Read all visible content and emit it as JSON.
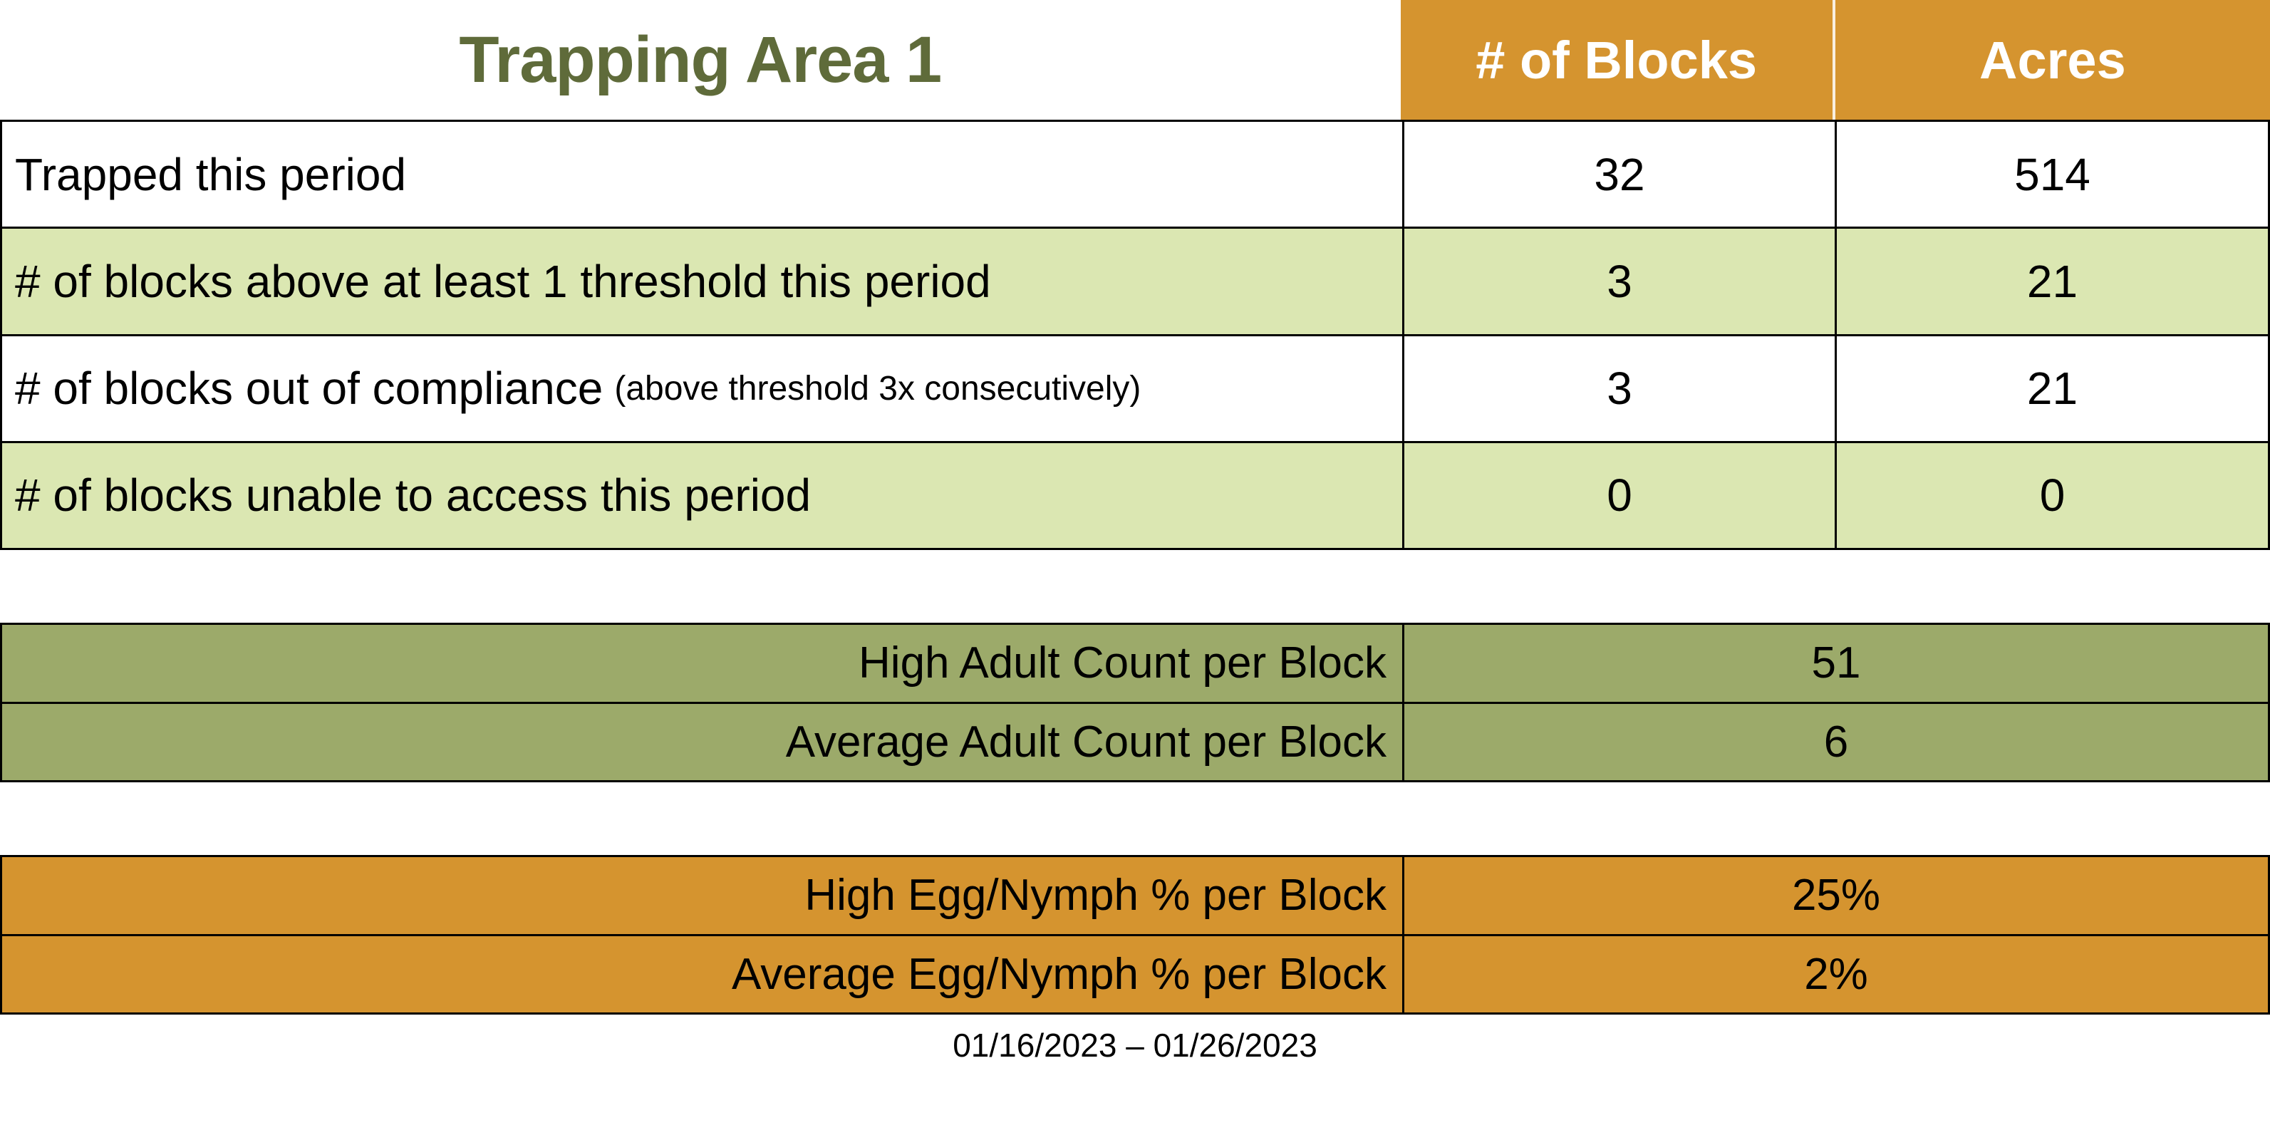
{
  "title": "Trapping Area 1",
  "colors": {
    "orange": "#D5942F",
    "light_green": "#DBE7B2",
    "olive_green": "#9CAA6A",
    "title_green": "#5F6B3A",
    "grid_line": "#000000",
    "header_text": "#FFFFFF"
  },
  "summary_table": {
    "column_headers": {
      "blocks": "# of Blocks",
      "acres": "Acres"
    },
    "rows": [
      {
        "label": "Trapped this period",
        "note": "",
        "blocks": "32",
        "acres": "514"
      },
      {
        "label": "# of blocks above at least 1 threshold this period",
        "note": "",
        "blocks": "3",
        "acres": "21"
      },
      {
        "label": "# of blocks out of compliance",
        "note": "(above threshold 3x consecutively)",
        "blocks": "3",
        "acres": "21"
      },
      {
        "label": "# of blocks unable to access this period",
        "note": "",
        "blocks": "0",
        "acres": "0"
      }
    ]
  },
  "adult_count_table": {
    "rows": [
      {
        "label": "High Adult Count per Block",
        "value": "51"
      },
      {
        "label": "Average Adult Count per Block",
        "value": "6"
      }
    ]
  },
  "egg_nymph_table": {
    "rows": [
      {
        "label": "High Egg/Nymph % per Block",
        "value": "25%"
      },
      {
        "label": "Average Egg/Nymph % per Block",
        "value": "2%"
      }
    ]
  },
  "date_range": "01/16/2023 – 01/26/2023"
}
